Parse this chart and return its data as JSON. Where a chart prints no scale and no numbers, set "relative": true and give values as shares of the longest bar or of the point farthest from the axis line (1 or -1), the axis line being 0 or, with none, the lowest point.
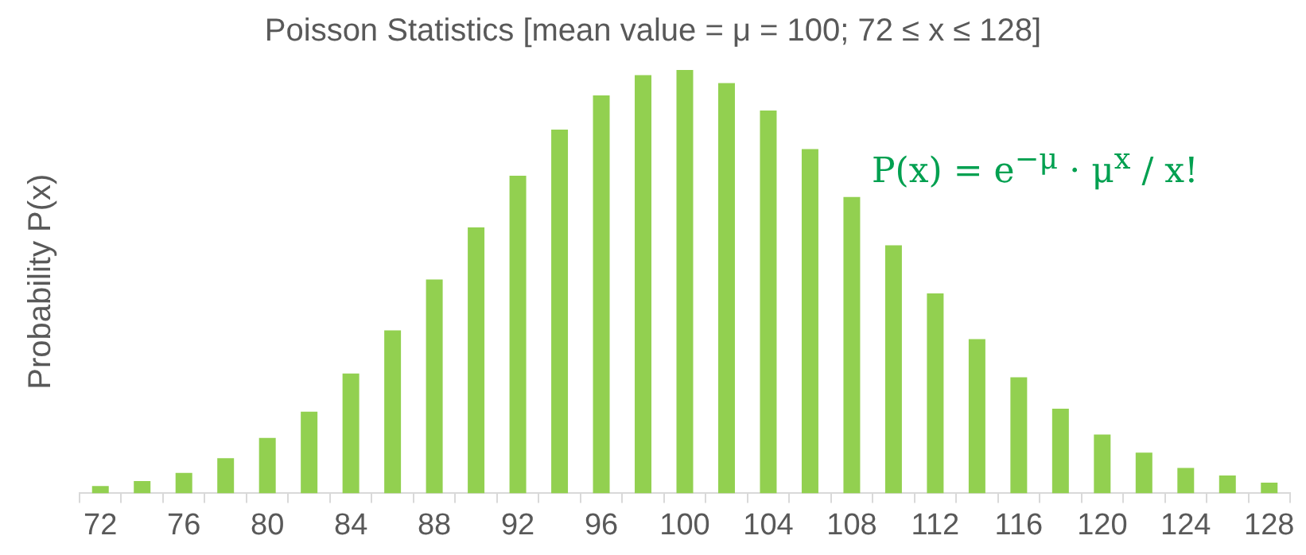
{
  "chart_data": {
    "type": "bar",
    "title": "Poisson Statistics [mean value = μ = 100; 72 ≤ x ≤ 128]",
    "ylabel": "Probability P(x)",
    "categories": [
      "72",
      null,
      "76",
      null,
      "80",
      null,
      "84",
      null,
      "88",
      null,
      "92",
      null,
      "96",
      null,
      "100",
      null,
      "104",
      null,
      "108",
      null,
      "112",
      null,
      "116",
      null,
      "120",
      null,
      "124",
      null,
      "128"
    ],
    "values": [
      0.017,
      0.029,
      0.048,
      0.083,
      0.131,
      0.193,
      0.283,
      0.385,
      0.505,
      0.628,
      0.75,
      0.859,
      0.94,
      0.988,
      1,
      0.969,
      0.904,
      0.813,
      0.7,
      0.586,
      0.472,
      0.364,
      0.274,
      0.2,
      0.139,
      0.096,
      0.06,
      0.042,
      0.025
    ],
    "color": "#92d050",
    "relative": true,
    "legend": false,
    "annotations": [
      "P(x) = e$^{−μ}$ · μ$^{x}$ / x!"
    ]
  }
}
